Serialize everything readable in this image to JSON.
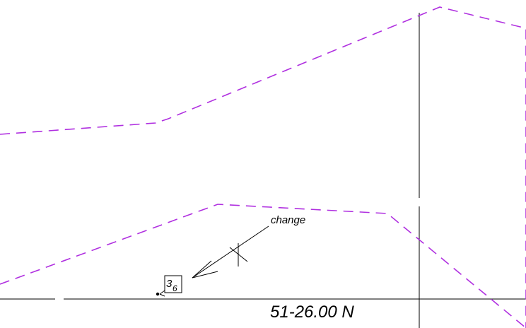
{
  "chart_title": "",
  "annotation": {
    "note": "change",
    "depth_main": "3",
    "depth_sub": "6"
  },
  "latitude_label": "51-26.00 N",
  "colors": {
    "boundary_line": "#b030e0",
    "graticule": "#000000",
    "background": "#ffffff"
  }
}
